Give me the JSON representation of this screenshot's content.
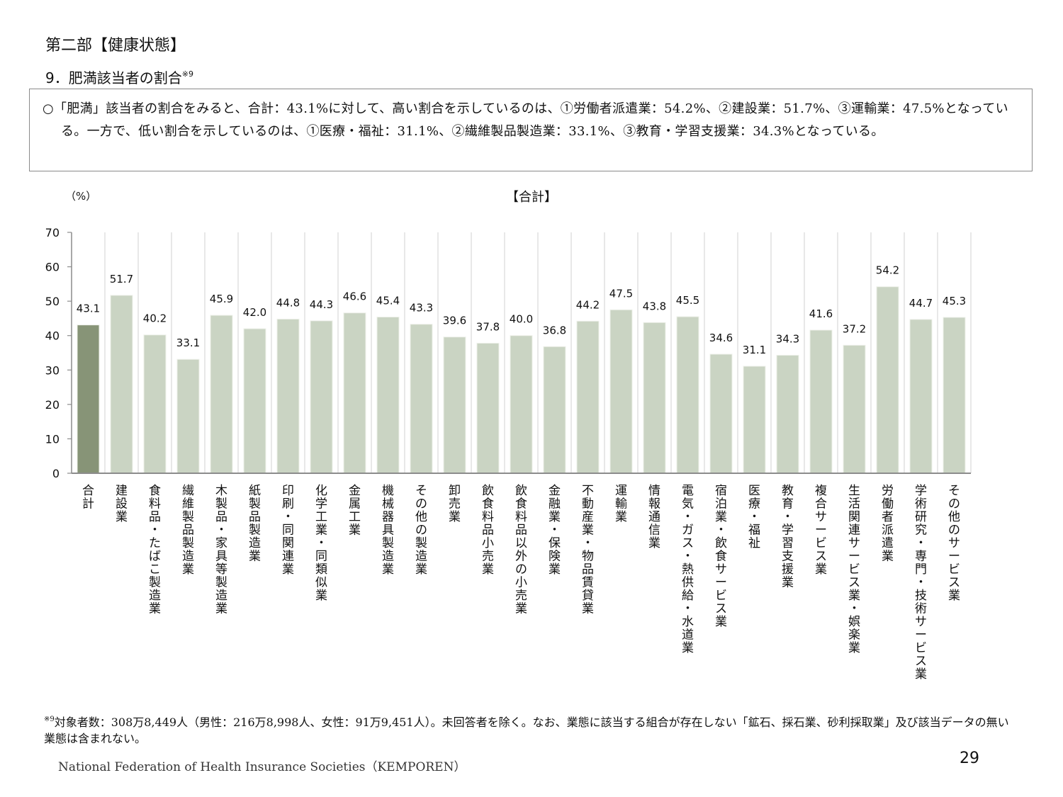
{
  "header": {
    "section_title": "第二部【健康状態】",
    "subtitle": "9．肥満該当者の割合",
    "subtitle_note": "※9"
  },
  "summary": {
    "text": "○「肥満」該当者の割合をみると、合計：43.1%に対して、高い割合を示しているのは、①労働者派遣業：54.2%、②建設業：51.7%、③運輸業：47.5%となっている。一方で、低い割合を示しているのは、①医療・福祉：31.1%、②繊維製品製造業：33.1%、③教育・学習支援業：34.3%となっている。"
  },
  "chart_data": {
    "type": "bar",
    "title": "【合計】",
    "ylabel": "（%）",
    "xlabel": "",
    "ylim": [
      0,
      70
    ],
    "yticks": [
      0,
      10,
      20,
      30,
      40,
      50,
      60,
      70
    ],
    "grid": "vertical separators between categories",
    "categories": [
      "合計",
      "建設業",
      "食料品・たばこ製造業",
      "繊維製品製造業",
      "木製品・家具等製造業",
      "紙製品製造業",
      "印刷・同関連業",
      "化学工業・同類似業",
      "金属工業",
      "機械器具製造業",
      "その他の製造業",
      "卸売業",
      "飲食料品小売業",
      "飲食料品以外の小売業",
      "金融業・保険業",
      "不動産業・物品賃貸業",
      "運輸業",
      "情報通信業",
      "電気・ガス・熱供給・水道業",
      "宿泊業・飲食サービス業",
      "医療・福祉",
      "教育・学習支援業",
      "複合サービス業",
      "生活関連サービス業・娯楽業",
      "労働者派遣業",
      "学術研究・専門・技術サービス業",
      "その他のサービス業"
    ],
    "values": [
      43.1,
      51.7,
      40.2,
      33.1,
      45.9,
      42.0,
      44.8,
      44.3,
      46.6,
      45.4,
      43.3,
      39.6,
      37.8,
      40.0,
      36.8,
      44.2,
      47.5,
      43.8,
      45.5,
      34.6,
      31.1,
      34.3,
      41.6,
      37.2,
      54.2,
      44.7,
      45.3
    ],
    "value_labels": [
      "43.1",
      "51.7",
      "40.2",
      "33.1",
      "45.9",
      "42.0",
      "44.8",
      "44.3",
      "46.6",
      "45.4",
      "43.3",
      "39.6",
      "37.8",
      "40.0",
      "36.8",
      "44.2",
      "47.5",
      "43.8",
      "45.5",
      "34.6",
      "31.1",
      "34.3",
      "41.6",
      "37.2",
      "54.2",
      "44.7",
      "45.3"
    ],
    "colors": {
      "total": "#879477",
      "industry": "#cad4c3",
      "bar_edge": "#eef0ea",
      "grid": "#e0e0e0",
      "axis": "#8c8c8c"
    },
    "highlight_index": 0
  },
  "footnote": {
    "marker": "※9",
    "text": "対象者数：308万8,449人（男性：216万8,998人、女性：91万9,451人）。未回答者を除く。なお、業態に該当する組合が存在しない「鉱石、採石業、砂利採取業」及び該当データの無い業態は含まれない。"
  },
  "footer": {
    "organization": "National Federation of Health Insurance Societies（KEMPOREN）",
    "page_number": "29"
  }
}
